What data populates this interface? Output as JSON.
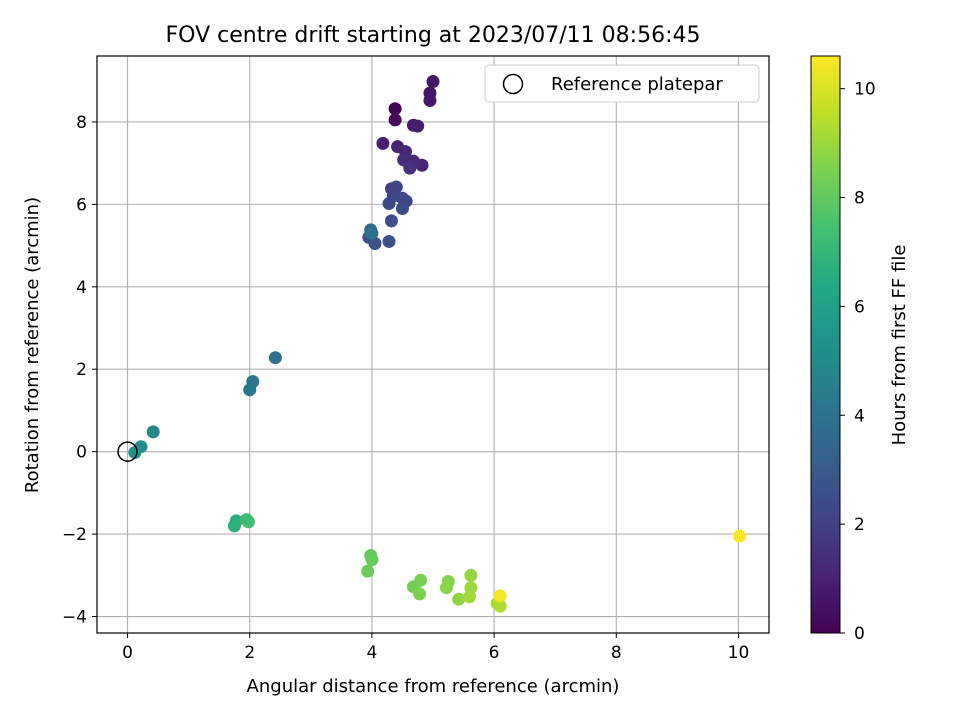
{
  "chart_data": {
    "type": "scatter",
    "title": "FOV centre drift starting at 2023/07/11 08:56:45",
    "xlabel": "Angular distance from reference (arcmin)",
    "ylabel": "Rotation from reference (arcmin)",
    "xlim": [
      -0.5,
      10.5
    ],
    "ylim": [
      -4.4,
      9.6
    ],
    "xticks": [
      0,
      2,
      4,
      6,
      8,
      10
    ],
    "yticks": [
      -4,
      -2,
      0,
      2,
      4,
      6,
      8
    ],
    "grid": true,
    "legend": {
      "position": "top-right",
      "entries": [
        "Reference platepar"
      ]
    },
    "reference_point": {
      "x": 0,
      "y": 0
    },
    "colorbar": {
      "label": "Hours from first FF file",
      "range": [
        0,
        10.6
      ],
      "ticks": [
        0,
        2,
        4,
        6,
        8,
        10
      ],
      "colormap": "viridis"
    },
    "points": [
      {
        "x": 4.38,
        "y": 8.32,
        "c": 0.1
      },
      {
        "x": 4.38,
        "y": 8.05,
        "c": 0.2
      },
      {
        "x": 5.0,
        "y": 8.98,
        "c": 0.6
      },
      {
        "x": 4.95,
        "y": 8.7,
        "c": 0.65
      },
      {
        "x": 4.95,
        "y": 8.52,
        "c": 0.7
      },
      {
        "x": 4.68,
        "y": 7.92,
        "c": 0.8
      },
      {
        "x": 4.75,
        "y": 7.9,
        "c": 0.85
      },
      {
        "x": 4.18,
        "y": 7.48,
        "c": 0.9
      },
      {
        "x": 4.42,
        "y": 7.4,
        "c": 1.0
      },
      {
        "x": 4.55,
        "y": 7.28,
        "c": 1.2
      },
      {
        "x": 4.82,
        "y": 6.95,
        "c": 1.1
      },
      {
        "x": 4.68,
        "y": 7.05,
        "c": 1.3
      },
      {
        "x": 4.52,
        "y": 7.08,
        "c": 1.4
      },
      {
        "x": 4.62,
        "y": 6.88,
        "c": 1.5
      },
      {
        "x": 4.32,
        "y": 6.38,
        "c": 2.0
      },
      {
        "x": 4.4,
        "y": 6.42,
        "c": 2.1
      },
      {
        "x": 4.35,
        "y": 6.2,
        "c": 2.2
      },
      {
        "x": 4.5,
        "y": 6.15,
        "c": 2.3
      },
      {
        "x": 4.56,
        "y": 6.08,
        "c": 2.2
      },
      {
        "x": 4.28,
        "y": 6.02,
        "c": 2.3
      },
      {
        "x": 4.5,
        "y": 5.9,
        "c": 2.4
      },
      {
        "x": 4.32,
        "y": 5.6,
        "c": 2.5
      },
      {
        "x": 3.95,
        "y": 5.2,
        "c": 2.6
      },
      {
        "x": 4.05,
        "y": 5.05,
        "c": 2.7
      },
      {
        "x": 4.28,
        "y": 5.1,
        "c": 2.6
      },
      {
        "x": 3.98,
        "y": 5.38,
        "c": 3.6
      },
      {
        "x": 4.0,
        "y": 5.3,
        "c": 3.8
      },
      {
        "x": 2.42,
        "y": 2.28,
        "c": 3.9
      },
      {
        "x": 2.05,
        "y": 1.7,
        "c": 4.1
      },
      {
        "x": 2.0,
        "y": 1.5,
        "c": 4.3
      },
      {
        "x": 0.42,
        "y": 0.48,
        "c": 4.9
      },
      {
        "x": 0.22,
        "y": 0.12,
        "c": 5.1
      },
      {
        "x": 0.12,
        "y": -0.02,
        "c": 5.3
      },
      {
        "x": 1.78,
        "y": -1.68,
        "c": 6.6
      },
      {
        "x": 1.75,
        "y": -1.8,
        "c": 6.7
      },
      {
        "x": 1.95,
        "y": -1.65,
        "c": 7.2
      },
      {
        "x": 1.98,
        "y": -1.7,
        "c": 7.3
      },
      {
        "x": 3.98,
        "y": -2.52,
        "c": 8.0
      },
      {
        "x": 4.0,
        "y": -2.62,
        "c": 8.1
      },
      {
        "x": 3.93,
        "y": -2.9,
        "c": 8.2
      },
      {
        "x": 4.68,
        "y": -3.28,
        "c": 8.3
      },
      {
        "x": 4.8,
        "y": -3.12,
        "c": 8.4
      },
      {
        "x": 4.78,
        "y": -3.45,
        "c": 8.5
      },
      {
        "x": 5.25,
        "y": -3.15,
        "c": 8.6
      },
      {
        "x": 5.22,
        "y": -3.3,
        "c": 8.7
      },
      {
        "x": 5.42,
        "y": -3.58,
        "c": 8.8
      },
      {
        "x": 5.62,
        "y": -3.0,
        "c": 8.9
      },
      {
        "x": 5.62,
        "y": -3.3,
        "c": 9.0
      },
      {
        "x": 5.6,
        "y": -3.52,
        "c": 9.1
      },
      {
        "x": 6.05,
        "y": -3.68,
        "c": 9.2
      },
      {
        "x": 6.1,
        "y": -3.75,
        "c": 9.3
      },
      {
        "x": 6.1,
        "y": -3.5,
        "c": 10.5
      },
      {
        "x": 10.02,
        "y": -2.05,
        "c": 10.6
      }
    ]
  }
}
